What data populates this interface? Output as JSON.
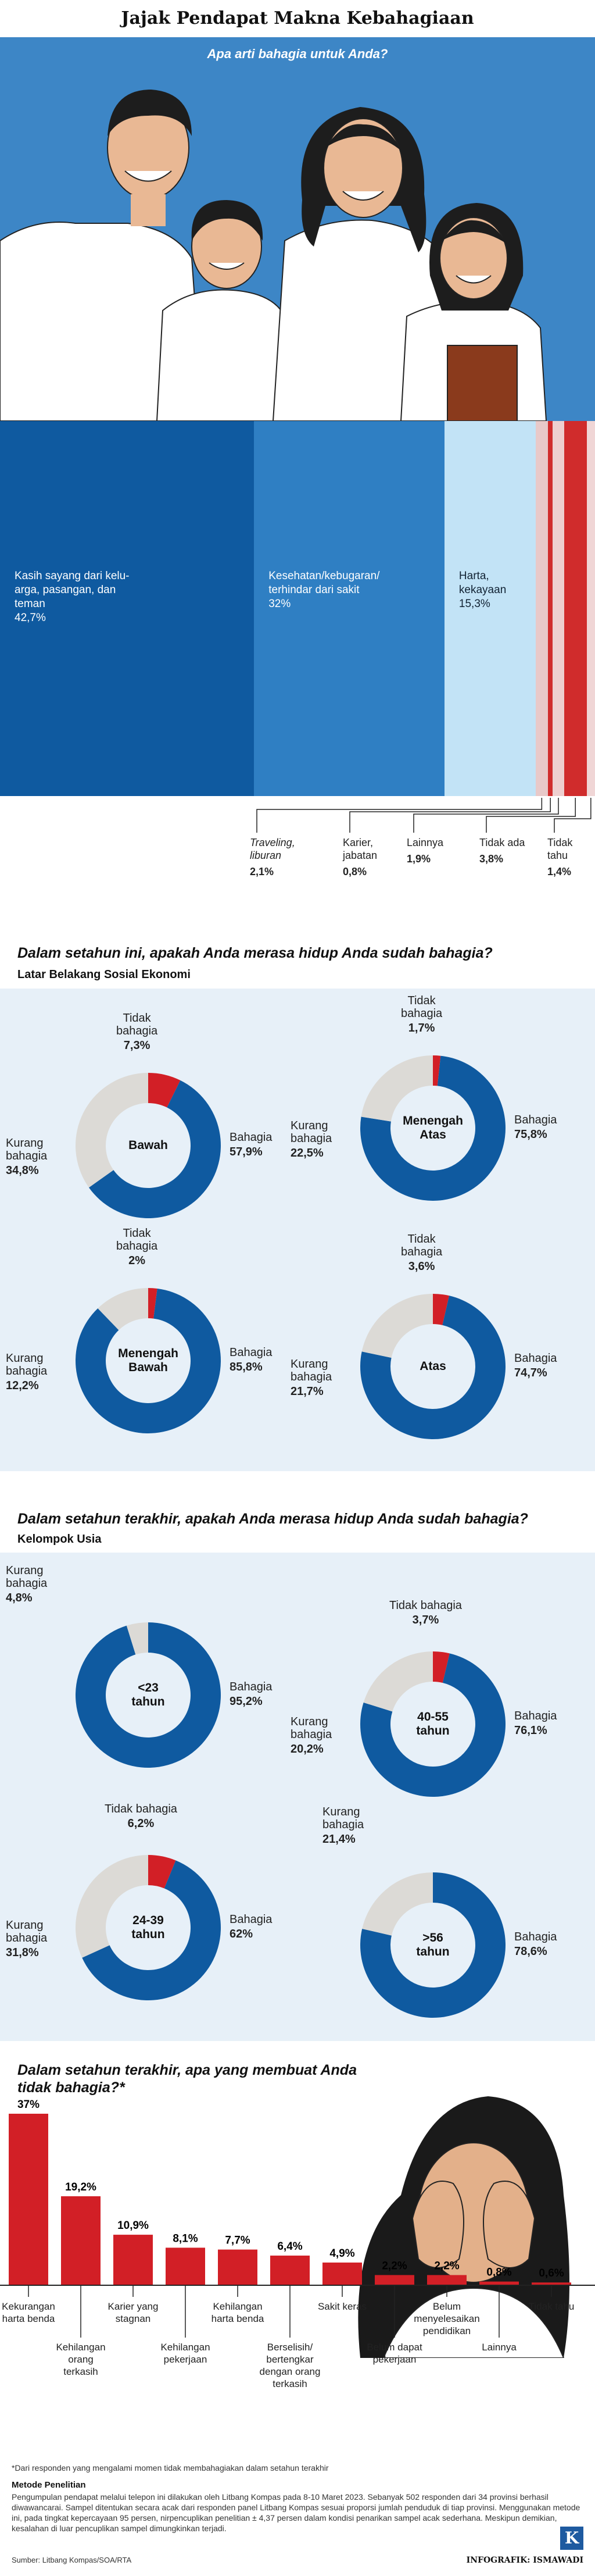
{
  "title": "Jajak Pendapat Makna Kebahagiaan",
  "q1": {
    "question": "Apa arti bahagia untuk Anda?",
    "items": [
      {
        "label": "Kasih sayang dari kelu-\narga, pasangan, dan\nteman",
        "value": "42,7%",
        "pct": 42.7,
        "color": "#0f5aa0"
      },
      {
        "label": "Kesehatan/kebugaran/\nterhindar dari sakit",
        "value": "32%",
        "pct": 32.0,
        "color": "#2f7fc3"
      },
      {
        "label": "Harta,\nkekayaan",
        "value": "15,3%",
        "pct": 15.3,
        "color": "#c2e3f6"
      },
      {
        "label": "Traveling,\nliburan",
        "value": "2,1%",
        "pct": 2.1,
        "color": "#e8c9c9"
      },
      {
        "label": "Karier,\njabatan",
        "value": "0,8%",
        "pct": 0.8,
        "color": "#d02c2c"
      },
      {
        "label": "Lainnya",
        "value": "1,9%",
        "pct": 1.9,
        "color": "#eecfcf"
      },
      {
        "label": "Tidak ada",
        "value": "3,8%",
        "pct": 3.8,
        "color": "#d02c2c"
      },
      {
        "label": "Tidak\ntahu",
        "value": "1,4%",
        "pct": 1.4,
        "color": "#f0d6d6"
      }
    ]
  },
  "q2": {
    "question": "Dalam setahun ini, apakah Anda merasa hidup Anda sudah bahagia?",
    "subtitle": "Latar Belakang Sosial Ekonomi"
  },
  "q3": {
    "question": "Dalam setahun terakhir, apakah Anda merasa hidup Anda sudah bahagia?",
    "subtitle": "Kelompok Usia"
  },
  "labels": {
    "bahagia": "Bahagia",
    "kurang": "Kurang\nbahagia",
    "tidak": "Tidak\nbahagia",
    "tidak_inline": "Tidak bahagia"
  },
  "q4": {
    "question": "Dalam setahun terakhir, apa yang membuat Anda\ntidak bahagia?*"
  },
  "chart_data": [
    {
      "type": "bar",
      "title": "Apa arti bahagia untuk Anda?",
      "categories": [
        "Kasih sayang dari keluarga, pasangan, dan teman",
        "Kesehatan/kebugaran/terhindar dari sakit",
        "Harta, kekayaan",
        "Traveling, liburan",
        "Karier, jabatan",
        "Lainnya",
        "Tidak ada",
        "Tidak tahu"
      ],
      "values": [
        42.7,
        32.0,
        15.3,
        2.1,
        0.8,
        1.9,
        3.8,
        1.4
      ]
    },
    {
      "type": "pie",
      "title": "Latar Belakang Sosial Ekonomi",
      "groups": [
        {
          "name": "Bawah",
          "bahagia": 57.9,
          "kurang": 34.8,
          "tidak": 7.3
        },
        {
          "name": "Menengah Atas",
          "bahagia": 75.8,
          "kurang": 22.5,
          "tidak": 1.7
        },
        {
          "name": "Menengah Bawah",
          "bahagia": 85.8,
          "kurang": 12.2,
          "tidak": 2.0
        },
        {
          "name": "Atas",
          "bahagia": 74.7,
          "kurang": 21.7,
          "tidak": 3.6
        }
      ]
    },
    {
      "type": "pie",
      "title": "Kelompok Usia",
      "groups": [
        {
          "name": "<23 tahun",
          "bahagia": 95.2,
          "kurang": 4.8,
          "tidak": 0
        },
        {
          "name": "40-55 tahun",
          "bahagia": 76.1,
          "kurang": 20.2,
          "tidak": 3.7
        },
        {
          "name": "24-39 tahun",
          "bahagia": 62,
          "kurang": 31.8,
          "tidak": 6.2
        },
        {
          "name": ">56 tahun",
          "bahagia": 78.6,
          "kurang": 21.4,
          "tidak": 0
        }
      ]
    },
    {
      "type": "bar",
      "title": "Dalam setahun terakhir, apa yang membuat Anda tidak bahagia?*",
      "categories": [
        "Kekurangan harta benda",
        "Kehilangan orang terkasih",
        "Karier yang stagnan",
        "Kehilangan pekerjaan",
        "Kehilangan harta benda",
        "Berselisih/ bertengkar dengan orang terkasih",
        "Sakit keras",
        "Belum dapat pekerjaan",
        "Belum menyelesaikan pendidikan",
        "Lainnya",
        "Tidak tahu"
      ],
      "values": [
        37,
        19.2,
        10.9,
        8.1,
        7.7,
        6.4,
        4.9,
        2.2,
        2.2,
        0.8,
        0.6
      ],
      "labels": [
        "37%",
        "19,2%",
        "10,9%",
        "8,1%",
        "7,7%",
        "6,4%",
        "4,9%",
        "2,2%",
        "2,2%",
        "0,8%",
        "0,6%"
      ]
    }
  ],
  "socio": [
    {
      "name": "Bawah",
      "b": "57,9%",
      "k": "34,8%",
      "t": "7,3%"
    },
    {
      "name": "Menengah\nAtas",
      "b": "75,8%",
      "k": "22,5%",
      "t": "1,7%"
    },
    {
      "name": "Menengah\nBawah",
      "b": "85,8%",
      "k": "12,2%",
      "t": "2%"
    },
    {
      "name": "Atas",
      "b": "74,7%",
      "k": "21,7%",
      "t": "3,6%"
    }
  ],
  "age": [
    {
      "name": "<23\ntahun",
      "b": "95,2%",
      "k": "4,8%"
    },
    {
      "name": "40-55\ntahun",
      "b": "76,1%",
      "k": "20,2%",
      "t": "3,7%"
    },
    {
      "name": "24-39\ntahun",
      "b": "62%",
      "k": "31,8%",
      "t": "6,2%"
    },
    {
      "name": ">56\ntahun",
      "b": "78,6%",
      "k": "21,4%"
    }
  ],
  "footnote": "*Dari responden yang mengalami momen tidak membahagiakan dalam setahun terakhir",
  "method_title": "Metode Penelitian",
  "method": "Pengumpulan pendapat melalui telepon ini dilakukan oleh Litbang Kompas pada 8-10 Maret 2023. Sebanyak 502 responden dari 34 provinsi berhasil diwawancarai. Sampel ditentukan secara acak dari responden panel Litbang Kompas sesuai proporsi jumlah penduduk di tiap provinsi. Menggunakan metode ini, pada tingkat kepercayaan 95 persen, nirpencuplikan penelitian ± 4,37 persen dalam kondisi penarikan sampel acak sederhana. Meskipun demikian, kesalahan di luar pencuplikan sampel dimungkinkan terjadi.",
  "source": "Sumber: Litbang Kompas/SOA/RTA",
  "credit": "INFOGRAFIK: ISMAWADI",
  "logo": "K",
  "colors": {
    "blue": "#0f5aa0",
    "grey": "#dcdad6",
    "red": "#d21f26",
    "panel": "#e7f0f8",
    "bar": "#d21f26"
  }
}
